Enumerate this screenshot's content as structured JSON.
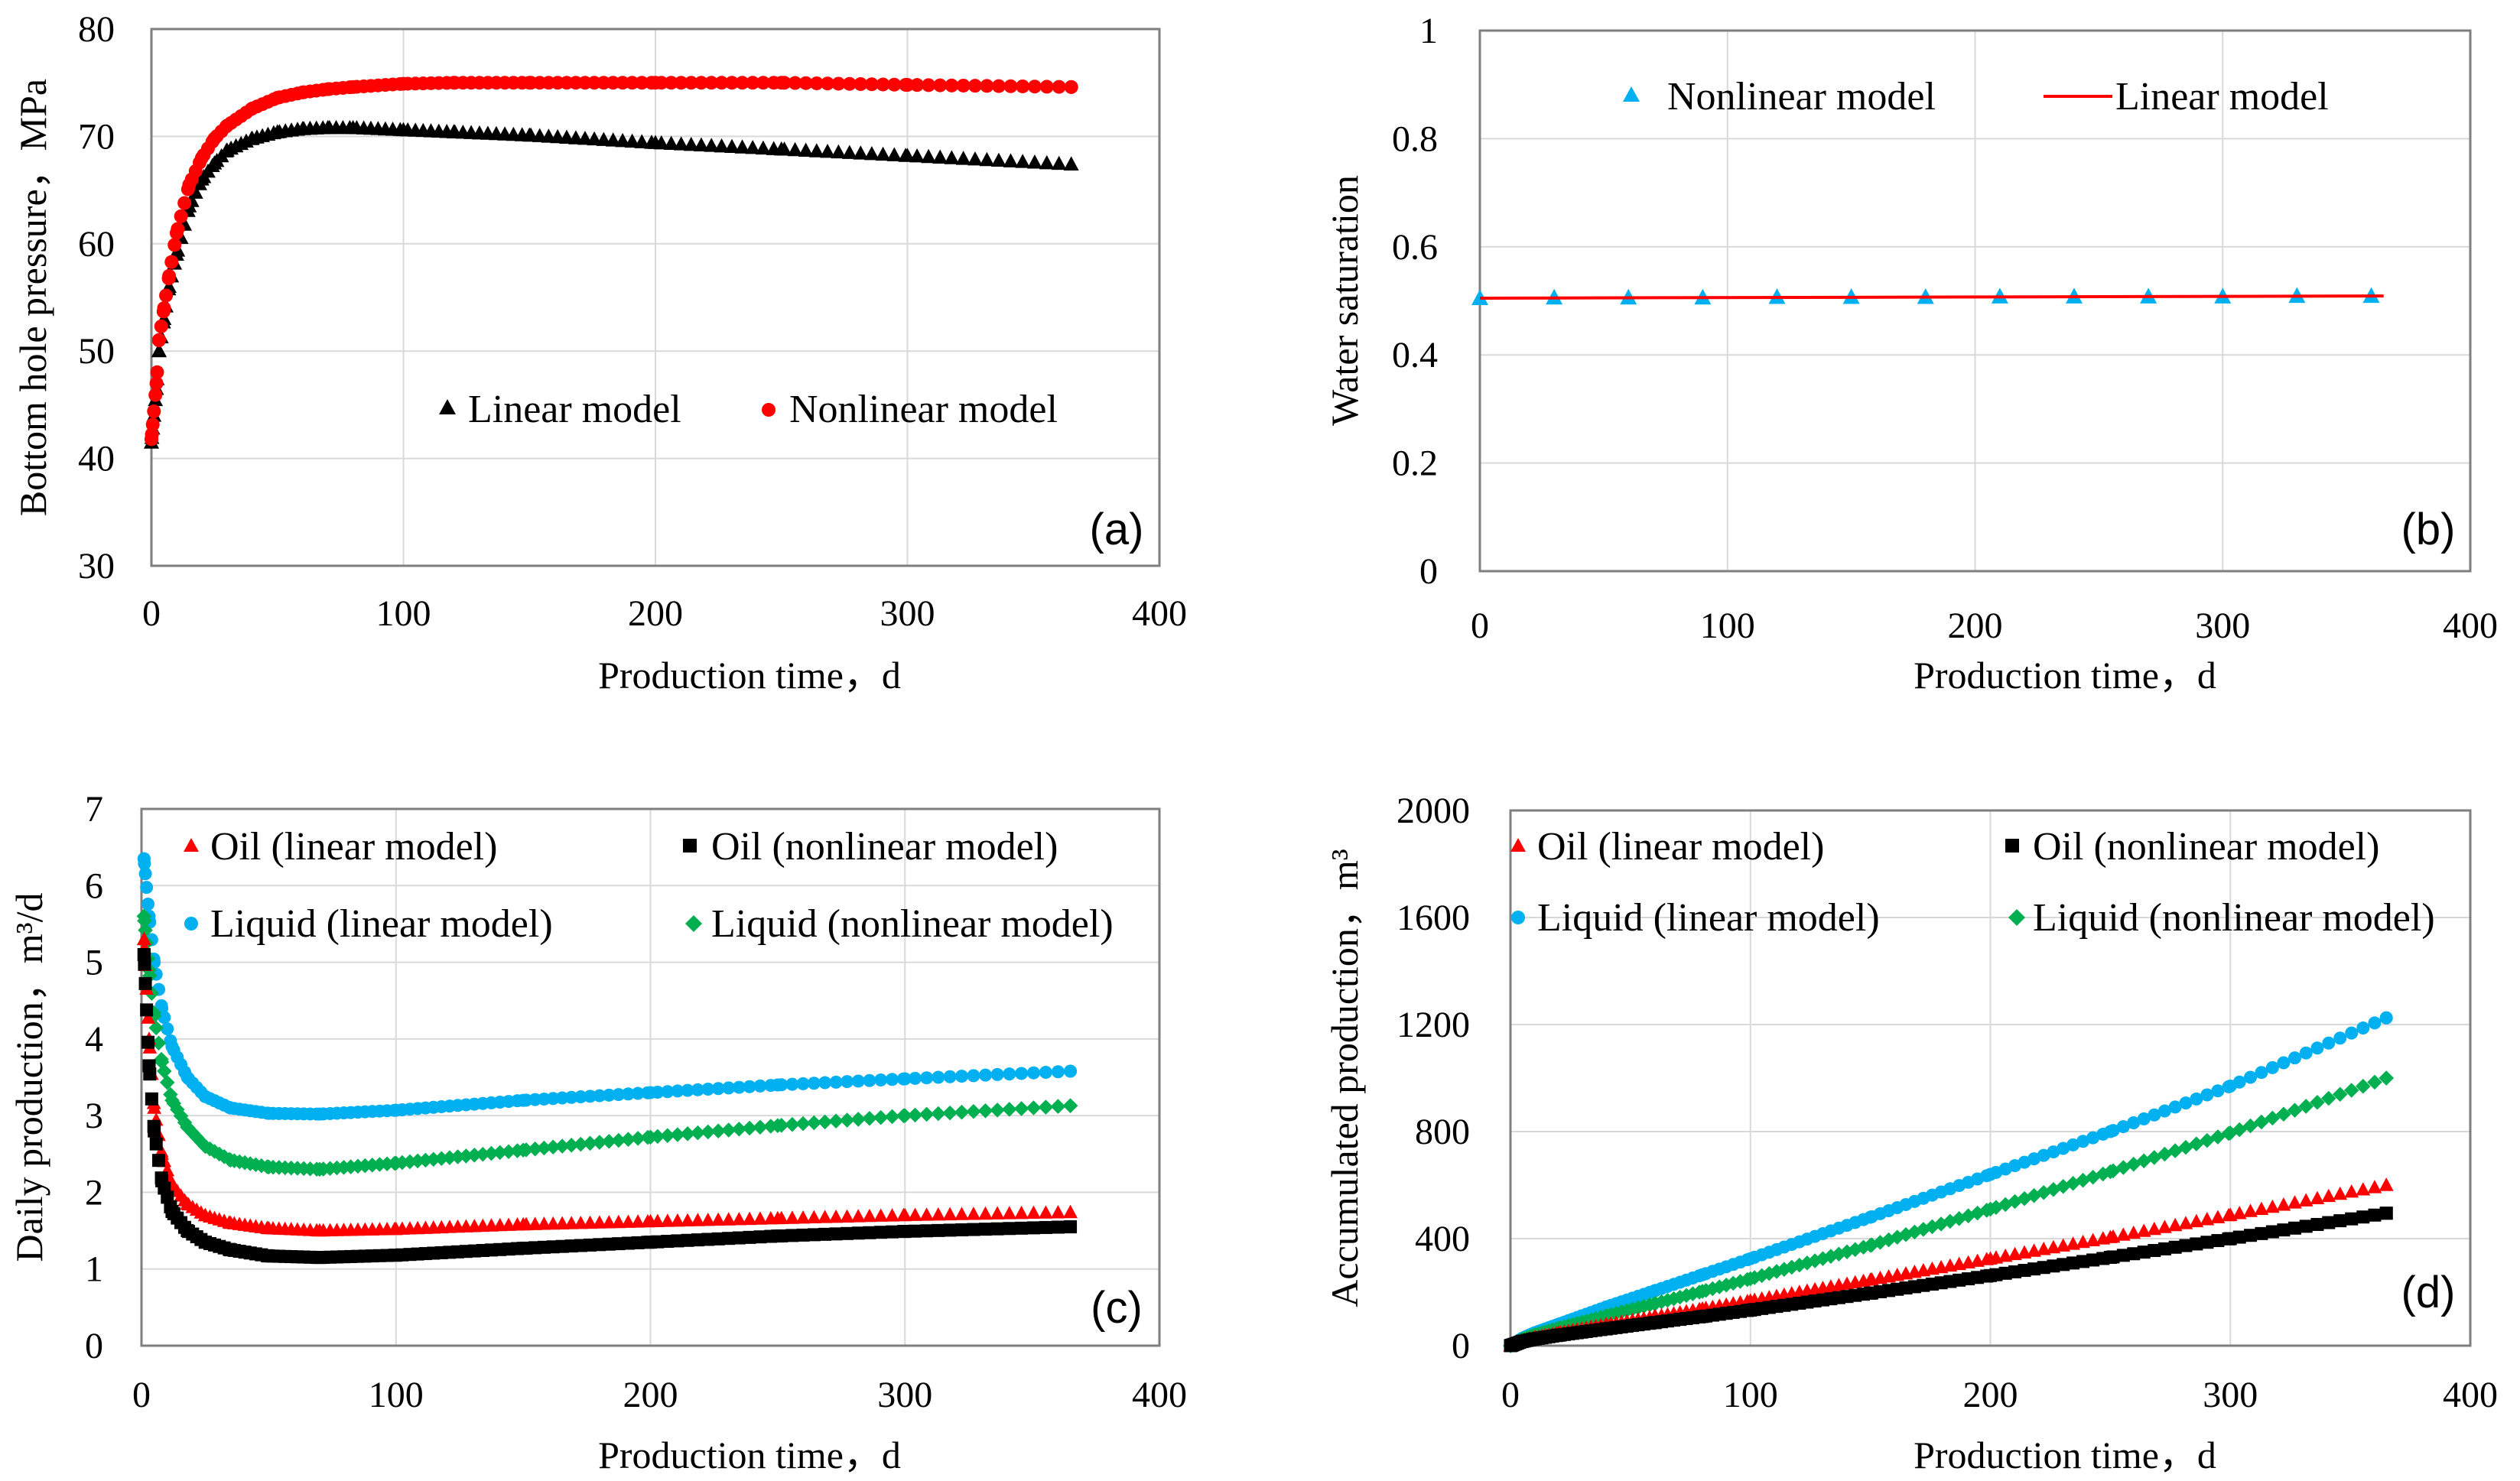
{
  "colors": {
    "red": "#ff0000",
    "black": "#000000",
    "blue": "#00b0f0",
    "green": "#00b050",
    "grid": "#d9d9d9",
    "frame": "#7f7f7f"
  },
  "chart_data": [
    {
      "id": "a",
      "type": "scatter",
      "panel_tag": "(a)",
      "xlabel": "Production time，d",
      "ylabel": "Bottom hole pressure，MPa",
      "xlim": [
        0,
        400
      ],
      "ylim": [
        30,
        80
      ],
      "xticks": [
        "0",
        "100",
        "200",
        "300",
        "400"
      ],
      "yticks": [
        "30",
        "40",
        "50",
        "60",
        "70",
        "80"
      ],
      "legend": [
        {
          "label": "Linear model",
          "marker": "triangle",
          "color": "#000000"
        },
        {
          "label": "Nonlinear model",
          "marker": "circle",
          "color": "#ff0000"
        }
      ],
      "series": [
        {
          "name": "Linear model",
          "marker": "triangle",
          "color": "#000000",
          "x": [
            0,
            2,
            3,
            5,
            7,
            10,
            15,
            20,
            25,
            30,
            40,
            50,
            60,
            70,
            80,
            100,
            120,
            150,
            200,
            250,
            300,
            365
          ],
          "y": [
            41.5,
            46.5,
            50,
            53,
            56,
            59,
            63.5,
            66,
            67.5,
            68.7,
            69.8,
            70.4,
            70.7,
            70.8,
            70.8,
            70.6,
            70.4,
            70.1,
            69.4,
            68.8,
            68.2,
            67.4
          ]
        },
        {
          "name": "Nonlinear model",
          "marker": "circle",
          "color": "#ff0000",
          "x": [
            0,
            2,
            3,
            5,
            7,
            10,
            15,
            20,
            25,
            30,
            40,
            50,
            60,
            70,
            80,
            100,
            120,
            150,
            200,
            250,
            300,
            365
          ],
          "y": [
            41.8,
            47,
            51,
            54,
            57,
            61,
            65.5,
            68,
            69.8,
            71,
            72.6,
            73.6,
            74.1,
            74.4,
            74.6,
            74.9,
            75,
            75,
            75,
            75,
            74.8,
            74.6
          ]
        }
      ]
    },
    {
      "id": "b",
      "type": "line",
      "panel_tag": "(b)",
      "xlabel": "Production time，d",
      "ylabel": "Water saturation",
      "xlim": [
        0,
        400
      ],
      "ylim": [
        0,
        1
      ],
      "xticks": [
        "0",
        "100",
        "200",
        "300",
        "400"
      ],
      "yticks": [
        "0",
        "0.2",
        "0.4",
        "0.6",
        "0.8",
        "1"
      ],
      "legend": [
        {
          "label": "Nonlinear model",
          "marker": "triangle",
          "color": "#00b0f0"
        },
        {
          "label": "Linear model",
          "marker": "line",
          "color": "#ff0000"
        }
      ],
      "series": [
        {
          "name": "Nonlinear model",
          "marker": "triangle",
          "color": "#00b0f0",
          "x": [
            0,
            30,
            60,
            90,
            120,
            150,
            180,
            210,
            240,
            270,
            300,
            330,
            360
          ],
          "y": [
            0.505,
            0.506,
            0.506,
            0.506,
            0.507,
            0.507,
            0.507,
            0.508,
            0.508,
            0.508,
            0.508,
            0.509,
            0.509
          ]
        },
        {
          "name": "Linear model",
          "marker": "line",
          "color": "#ff0000",
          "x": [
            0,
            365
          ],
          "y": [
            0.505,
            0.509
          ]
        }
      ]
    },
    {
      "id": "c",
      "type": "scatter",
      "panel_tag": "(c)",
      "xlabel": "Production time，d",
      "ylabel": "Daily production，m³/d",
      "xlim": [
        0,
        400
      ],
      "ylim": [
        0,
        7
      ],
      "xticks": [
        "0",
        "100",
        "200",
        "300",
        "400"
      ],
      "yticks": [
        "0",
        "1",
        "2",
        "3",
        "4",
        "5",
        "6",
        "7"
      ],
      "legend": [
        {
          "label": "Oil (linear model)",
          "marker": "triangle",
          "color": "#ff0000"
        },
        {
          "label": "Oil (nonlinear model)",
          "marker": "square",
          "color": "#000000"
        },
        {
          "label": "Liquid (linear model)",
          "marker": "circle",
          "color": "#00b0f0"
        },
        {
          "label": "Liquid (nonlinear model)",
          "marker": "diamond",
          "color": "#00b050"
        }
      ],
      "series": [
        {
          "name": "Liquid (linear model)",
          "marker": "circle",
          "color": "#00b0f0",
          "x": [
            1,
            3,
            5,
            8,
            12,
            18,
            25,
            35,
            50,
            70,
            100,
            150,
            200,
            250,
            300,
            365
          ],
          "y": [
            6.35,
            5.6,
            5.0,
            4.4,
            3.9,
            3.5,
            3.25,
            3.1,
            3.03,
            3.02,
            3.07,
            3.2,
            3.3,
            3.4,
            3.48,
            3.58
          ]
        },
        {
          "name": "Liquid (nonlinear model)",
          "marker": "diamond",
          "color": "#00b050",
          "x": [
            1,
            3,
            5,
            8,
            12,
            18,
            25,
            35,
            50,
            70,
            100,
            150,
            200,
            250,
            300,
            365
          ],
          "y": [
            5.6,
            4.9,
            4.3,
            3.7,
            3.2,
            2.85,
            2.6,
            2.42,
            2.33,
            2.3,
            2.38,
            2.55,
            2.72,
            2.87,
            3.0,
            3.13
          ]
        },
        {
          "name": "Oil (linear model)",
          "marker": "triangle",
          "color": "#ff0000",
          "x": [
            1,
            3,
            5,
            8,
            12,
            18,
            25,
            35,
            50,
            70,
            100,
            150,
            200,
            250,
            300,
            365
          ],
          "y": [
            5.3,
            4.0,
            3.1,
            2.5,
            2.1,
            1.85,
            1.7,
            1.6,
            1.53,
            1.5,
            1.52,
            1.58,
            1.62,
            1.66,
            1.7,
            1.74
          ]
        },
        {
          "name": "Oil (nonlinear model)",
          "marker": "square",
          "color": "#000000",
          "x": [
            1,
            3,
            5,
            8,
            12,
            18,
            25,
            35,
            50,
            70,
            100,
            150,
            200,
            250,
            300,
            365
          ],
          "y": [
            5.1,
            3.65,
            2.8,
            2.15,
            1.75,
            1.5,
            1.35,
            1.25,
            1.17,
            1.15,
            1.18,
            1.27,
            1.35,
            1.43,
            1.49,
            1.55
          ]
        }
      ]
    },
    {
      "id": "d",
      "type": "scatter",
      "panel_tag": "(d)",
      "xlabel": "Production time，d",
      "ylabel": "Accumulated production，m³",
      "xlim": [
        0,
        400
      ],
      "ylim": [
        0,
        2000
      ],
      "xticks": [
        "0",
        "100",
        "200",
        "300",
        "400"
      ],
      "yticks": [
        "0",
        "400",
        "800",
        "1200",
        "1600",
        "2000"
      ],
      "legend": [
        {
          "label": "Oil (linear model)",
          "marker": "triangle",
          "color": "#ff0000"
        },
        {
          "label": "Oil (nonlinear model)",
          "marker": "square",
          "color": "#000000"
        },
        {
          "label": "Liquid (linear model)",
          "marker": "circle",
          "color": "#00b0f0"
        },
        {
          "label": "Liquid (nonlinear model)",
          "marker": "diamond",
          "color": "#00b050"
        }
      ],
      "series": [
        {
          "name": "Liquid (linear model)",
          "marker": "circle",
          "color": "#00b0f0",
          "x": [
            0,
            5,
            10,
            20,
            40,
            60,
            80,
            100,
            150,
            200,
            250,
            300,
            365
          ],
          "y": [
            0,
            28,
            48,
            80,
            145,
            205,
            265,
            325,
            480,
            640,
            800,
            970,
            1225
          ]
        },
        {
          "name": "Liquid (nonlinear model)",
          "marker": "diamond",
          "color": "#00b050",
          "x": [
            0,
            5,
            10,
            20,
            40,
            60,
            80,
            100,
            150,
            200,
            250,
            300,
            365
          ],
          "y": [
            0,
            24,
            40,
            65,
            112,
            157,
            203,
            250,
            375,
            510,
            650,
            795,
            1000
          ]
        },
        {
          "name": "Oil (linear model)",
          "marker": "triangle",
          "color": "#ff0000",
          "x": [
            0,
            5,
            10,
            20,
            40,
            60,
            80,
            100,
            150,
            200,
            250,
            300,
            365
          ],
          "y": [
            0,
            18,
            30,
            48,
            79,
            108,
            138,
            168,
            246,
            325,
            405,
            488,
            600
          ]
        },
        {
          "name": "Oil (nonlinear model)",
          "marker": "square",
          "color": "#000000",
          "x": [
            0,
            5,
            10,
            20,
            40,
            60,
            80,
            100,
            150,
            200,
            250,
            300,
            365
          ],
          "y": [
            0,
            16,
            25,
            39,
            63,
            86,
            109,
            133,
            196,
            262,
            330,
            400,
            495
          ]
        }
      ]
    }
  ]
}
